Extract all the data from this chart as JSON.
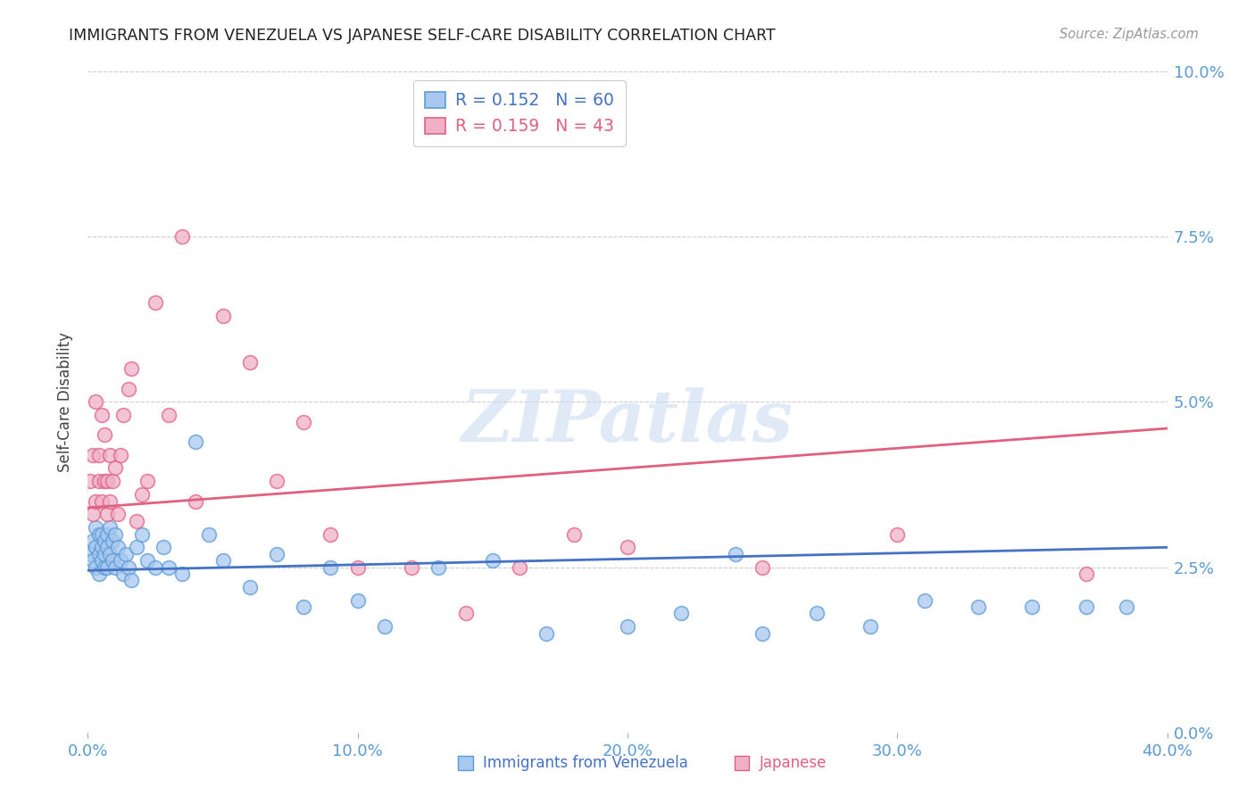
{
  "title": "IMMIGRANTS FROM VENEZUELA VS JAPANESE SELF-CARE DISABILITY CORRELATION CHART",
  "source": "Source: ZipAtlas.com",
  "ylabel": "Self-Care Disability",
  "xlim": [
    0.0,
    0.4
  ],
  "ylim": [
    0.0,
    0.1
  ],
  "xtick_vals": [
    0.0,
    0.1,
    0.2,
    0.3,
    0.4
  ],
  "xtick_labels": [
    "0.0%",
    "10.0%",
    "20.0%",
    "30.0%",
    "40.0%"
  ],
  "ytick_vals": [
    0.0,
    0.025,
    0.05,
    0.075,
    0.1
  ],
  "ytick_labels": [
    "0.0%",
    "2.5%",
    "5.0%",
    "7.5%",
    "10.0%"
  ],
  "watermark": "ZIPatlas",
  "legend_R1": "0.152",
  "legend_N1": "60",
  "legend_R2": "0.159",
  "legend_N2": "43",
  "label1": "Immigrants from Venezuela",
  "label2": "Japanese",
  "color_blue_fill": "#A8C8F0",
  "color_blue_edge": "#5B9BD5",
  "color_pink_fill": "#F0B0C8",
  "color_pink_edge": "#E06080",
  "color_blue_line": "#4472C4",
  "color_pink_line": "#E06080",
  "color_axis_text": "#5B9BD5",
  "color_grid": "#CCCCCC",
  "color_title": "#222222",
  "color_source": "#999999",
  "color_ylabel": "#444444",
  "color_watermark": "#C8D8F0",
  "blue_x": [
    0.001,
    0.002,
    0.002,
    0.003,
    0.003,
    0.003,
    0.004,
    0.004,
    0.004,
    0.005,
    0.005,
    0.005,
    0.006,
    0.006,
    0.006,
    0.007,
    0.007,
    0.007,
    0.008,
    0.008,
    0.009,
    0.009,
    0.01,
    0.01,
    0.011,
    0.012,
    0.013,
    0.014,
    0.015,
    0.016,
    0.018,
    0.02,
    0.022,
    0.025,
    0.028,
    0.03,
    0.035,
    0.04,
    0.045,
    0.05,
    0.06,
    0.07,
    0.08,
    0.09,
    0.1,
    0.11,
    0.13,
    0.15,
    0.17,
    0.2,
    0.22,
    0.24,
    0.25,
    0.27,
    0.29,
    0.31,
    0.33,
    0.35,
    0.37,
    0.385
  ],
  "blue_y": [
    0.027,
    0.026,
    0.029,
    0.025,
    0.028,
    0.031,
    0.024,
    0.03,
    0.027,
    0.028,
    0.026,
    0.03,
    0.029,
    0.025,
    0.027,
    0.03,
    0.028,
    0.025,
    0.027,
    0.031,
    0.026,
    0.029,
    0.025,
    0.03,
    0.028,
    0.026,
    0.024,
    0.027,
    0.025,
    0.023,
    0.028,
    0.03,
    0.026,
    0.025,
    0.028,
    0.025,
    0.024,
    0.044,
    0.03,
    0.026,
    0.022,
    0.027,
    0.019,
    0.025,
    0.02,
    0.016,
    0.025,
    0.026,
    0.015,
    0.016,
    0.018,
    0.027,
    0.015,
    0.018,
    0.016,
    0.02,
    0.019,
    0.019,
    0.019,
    0.019
  ],
  "pink_x": [
    0.001,
    0.002,
    0.002,
    0.003,
    0.003,
    0.004,
    0.004,
    0.005,
    0.005,
    0.006,
    0.006,
    0.007,
    0.007,
    0.008,
    0.008,
    0.009,
    0.01,
    0.011,
    0.012,
    0.013,
    0.015,
    0.016,
    0.018,
    0.02,
    0.022,
    0.025,
    0.03,
    0.035,
    0.04,
    0.05,
    0.06,
    0.07,
    0.08,
    0.09,
    0.1,
    0.12,
    0.14,
    0.16,
    0.18,
    0.2,
    0.25,
    0.3,
    0.37
  ],
  "pink_y": [
    0.038,
    0.033,
    0.042,
    0.035,
    0.05,
    0.038,
    0.042,
    0.048,
    0.035,
    0.038,
    0.045,
    0.033,
    0.038,
    0.035,
    0.042,
    0.038,
    0.04,
    0.033,
    0.042,
    0.048,
    0.052,
    0.055,
    0.032,
    0.036,
    0.038,
    0.065,
    0.048,
    0.075,
    0.035,
    0.063,
    0.056,
    0.038,
    0.047,
    0.03,
    0.025,
    0.025,
    0.018,
    0.025,
    0.03,
    0.028,
    0.025,
    0.03,
    0.024
  ],
  "blue_line_x0": 0.0,
  "blue_line_x1": 0.4,
  "blue_line_y0": 0.0245,
  "blue_line_y1": 0.028,
  "pink_line_x0": 0.0,
  "pink_line_x1": 0.4,
  "pink_line_y0": 0.034,
  "pink_line_y1": 0.046
}
